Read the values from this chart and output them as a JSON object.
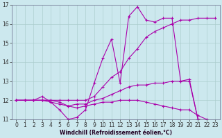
{
  "xlabel": "Windchill (Refroidissement éolien,°C)",
  "background_color": "#cce8ee",
  "grid_color": "#aacccc",
  "line_color": "#aa00aa",
  "xlim": [
    -0.5,
    23.5
  ],
  "ylim": [
    11,
    17
  ],
  "xticks": [
    0,
    1,
    2,
    3,
    4,
    5,
    6,
    7,
    8,
    9,
    10,
    11,
    12,
    13,
    14,
    15,
    16,
    17,
    18,
    19,
    20,
    21,
    22,
    23
  ],
  "yticks": [
    11,
    12,
    13,
    14,
    15,
    16,
    17
  ],
  "lines": [
    {
      "x": [
        0,
        1,
        2,
        3,
        4,
        5,
        6,
        7,
        8,
        9,
        10,
        11,
        12,
        13,
        14,
        15,
        16,
        17,
        18,
        19,
        20,
        21,
        22,
        23
      ],
      "y": [
        12.0,
        12.0,
        12.0,
        12.2,
        11.9,
        11.5,
        11.0,
        11.1,
        11.5,
        12.9,
        14.2,
        15.2,
        12.9,
        16.4,
        16.9,
        16.2,
        16.1,
        16.3,
        16.3,
        13.0,
        13.1,
        11.0,
        10.95,
        10.9
      ]
    },
    {
      "x": [
        0,
        1,
        2,
        3,
        4,
        5,
        6,
        7,
        8,
        9,
        10,
        11,
        12,
        13,
        14,
        15,
        16,
        17,
        18,
        19,
        20,
        21,
        22,
        23
      ],
      "y": [
        12.0,
        12.0,
        12.0,
        12.0,
        12.0,
        12.0,
        12.0,
        12.0,
        12.0,
        12.2,
        12.7,
        13.2,
        13.5,
        14.2,
        14.7,
        15.3,
        15.6,
        15.8,
        16.0,
        16.2,
        16.2,
        16.3,
        16.3,
        16.3
      ]
    },
    {
      "x": [
        0,
        1,
        2,
        3,
        4,
        5,
        6,
        7,
        8,
        9,
        10,
        11,
        12,
        13,
        14,
        15,
        16,
        17,
        18,
        19,
        20,
        21,
        22,
        23
      ],
      "y": [
        12.0,
        12.0,
        12.0,
        12.0,
        11.9,
        11.8,
        11.7,
        11.8,
        11.8,
        12.0,
        12.1,
        12.3,
        12.5,
        12.7,
        12.8,
        12.8,
        12.9,
        12.9,
        13.0,
        13.0,
        13.0,
        11.0,
        10.95,
        10.9
      ]
    },
    {
      "x": [
        0,
        1,
        2,
        3,
        4,
        5,
        6,
        7,
        8,
        9,
        10,
        11,
        12,
        13,
        14,
        15,
        16,
        17,
        18,
        19,
        20,
        21,
        22,
        23
      ],
      "y": [
        12.0,
        12.0,
        12.0,
        12.0,
        12.0,
        11.9,
        11.7,
        11.6,
        11.7,
        11.8,
        11.9,
        11.9,
        12.0,
        12.0,
        12.0,
        11.9,
        11.8,
        11.7,
        11.6,
        11.5,
        11.5,
        11.2,
        11.0,
        10.9
      ]
    }
  ],
  "marker": "+",
  "markersize": 3.5,
  "linewidth": 0.8,
  "tick_fontsize": 5.5,
  "xlabel_fontsize": 5.5
}
